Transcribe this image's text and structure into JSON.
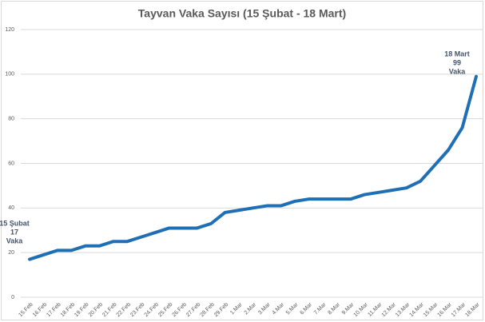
{
  "chart_data": {
    "type": "line",
    "title": "Tayvan Vaka Sayısı (15 Şubat - 18 Mart)",
    "categories": [
      "15.Feb",
      "16.Feb",
      "17.Feb",
      "18.Feb",
      "19.Feb",
      "20.Feb",
      "21.Feb",
      "22.Feb",
      "23.Feb",
      "24.Feb",
      "25.Feb",
      "26.Feb",
      "27.Feb",
      "28.Feb",
      "29.Feb",
      "1.Mar",
      "2.Mar",
      "3.Mar",
      "4.Mar",
      "5.Mar",
      "6.Mar",
      "7.Mar",
      "8.Mar",
      "9.Mar",
      "10.Mar",
      "11.Mar",
      "12.Mar",
      "13.Mar",
      "14.Mar",
      "15.Mar",
      "16.Mar",
      "17.Mar",
      "18.Mar"
    ],
    "series": [
      {
        "name": "Vaka",
        "color": "#1f6fb5",
        "values": [
          17,
          19,
          21,
          21,
          23,
          23,
          25,
          25,
          27,
          29,
          31,
          31,
          31,
          33,
          38,
          39,
          40,
          41,
          41,
          43,
          44,
          44,
          44,
          44,
          46,
          47,
          48,
          49,
          52,
          59,
          66,
          76,
          99
        ]
      }
    ],
    "ylim": [
      0,
      120
    ],
    "yticks": [
      0,
      20,
      40,
      60,
      80,
      100,
      120
    ],
    "grid": true,
    "annotations": [
      [
        "15 Şubat",
        "17",
        "Vaka"
      ],
      [
        "18 Mart",
        "99",
        "Vaka"
      ]
    ]
  }
}
